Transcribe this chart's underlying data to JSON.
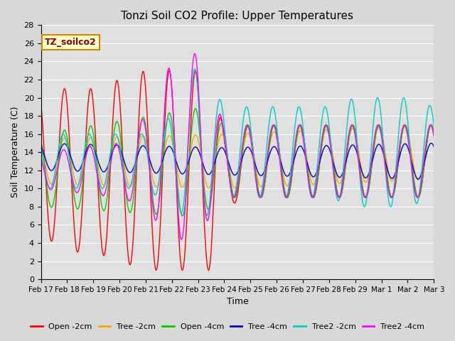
{
  "title": "Tonzi Soil CO2 Profile: Upper Temperatures",
  "xlabel": "Time",
  "ylabel": "Soil Temperature (C)",
  "ylim": [
    0,
    28
  ],
  "yticks": [
    0,
    2,
    4,
    6,
    8,
    10,
    12,
    14,
    16,
    18,
    20,
    22,
    24,
    26,
    28
  ],
  "xtick_labels": [
    "Feb 17",
    "Feb 18",
    "Feb 19",
    "Feb 20",
    "Feb 21",
    "Feb 22",
    "Feb 23",
    "Feb 24",
    "Feb 25",
    "Feb 26",
    "Feb 27",
    "Feb 28",
    "Feb 29",
    "Mar 1",
    "Mar 2",
    "Mar 3"
  ],
  "legend_labels": [
    "Open -2cm",
    "Tree -2cm",
    "Open -4cm",
    "Tree -4cm",
    "Tree2 -2cm",
    "Tree2 -4cm"
  ],
  "line_colors": [
    "#ff0000",
    "#ffa500",
    "#00cc00",
    "#0000cc",
    "#00cccc",
    "#ff00ff"
  ],
  "annotation_text": "TZ_soilco2",
  "background_color": "#d8d8d8",
  "plot_bg_color": "#e0e0e0",
  "figsize": [
    6.4,
    4.8
  ],
  "dpi": 100
}
